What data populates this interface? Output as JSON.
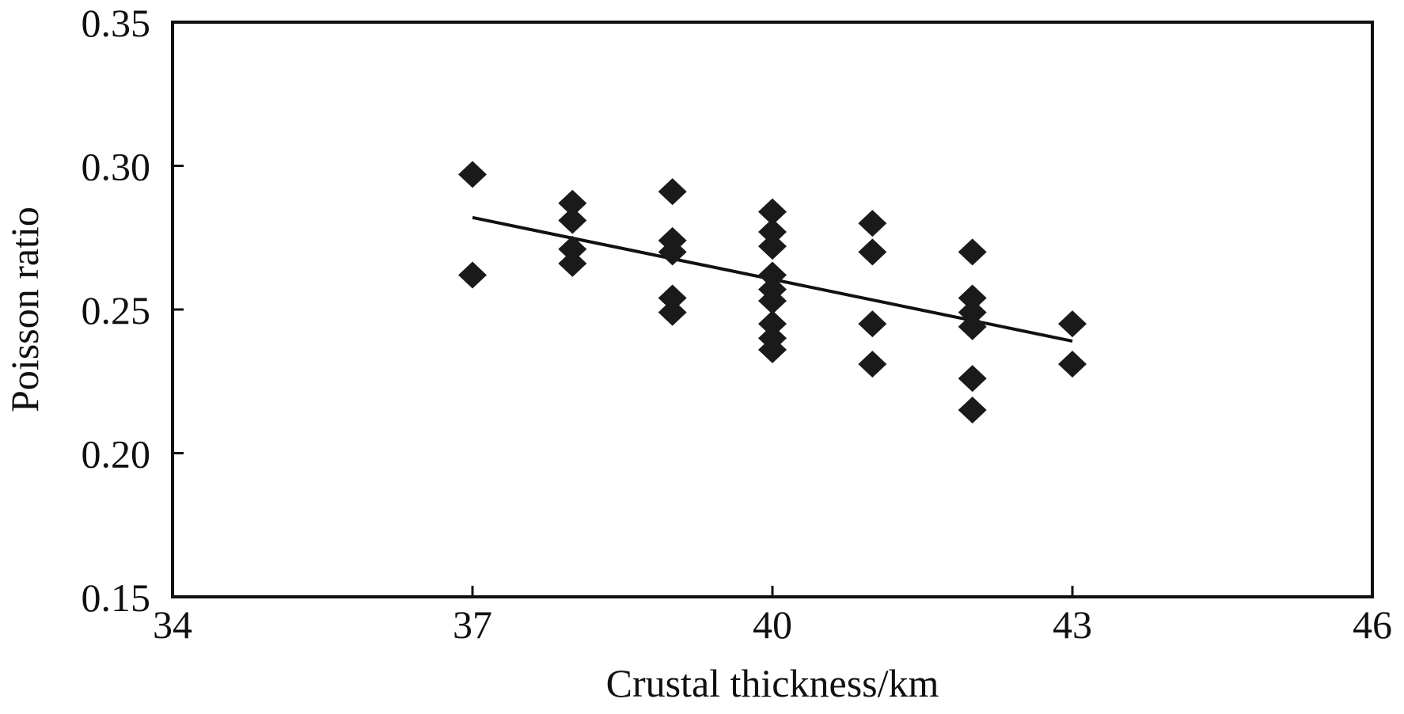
{
  "chart_data": {
    "type": "scatter",
    "xlabel": "Crustal thickness/km",
    "ylabel": "Poisson ratio",
    "xlim": [
      34,
      46
    ],
    "ylim": [
      0.15,
      0.35
    ],
    "xticks": [
      "34",
      "37",
      "40",
      "43",
      "46"
    ],
    "yticks": [
      "0.15",
      "0.20",
      "0.25",
      "0.30",
      "0.35"
    ],
    "grid": false,
    "marker": "diamond",
    "marker_color": "#1a1a1a",
    "series": [
      {
        "points": [
          {
            "x": 37,
            "y": 0.297
          },
          {
            "x": 37,
            "y": 0.262
          },
          {
            "x": 38,
            "y": 0.287
          },
          {
            "x": 38,
            "y": 0.281
          },
          {
            "x": 38,
            "y": 0.271
          },
          {
            "x": 38,
            "y": 0.266
          },
          {
            "x": 39,
            "y": 0.291
          },
          {
            "x": 39,
            "y": 0.274
          },
          {
            "x": 39,
            "y": 0.27
          },
          {
            "x": 39,
            "y": 0.254
          },
          {
            "x": 39,
            "y": 0.249
          },
          {
            "x": 40,
            "y": 0.284
          },
          {
            "x": 40,
            "y": 0.277
          },
          {
            "x": 40,
            "y": 0.272
          },
          {
            "x": 40,
            "y": 0.262
          },
          {
            "x": 40,
            "y": 0.257
          },
          {
            "x": 40,
            "y": 0.253
          },
          {
            "x": 40,
            "y": 0.245
          },
          {
            "x": 40,
            "y": 0.24
          },
          {
            "x": 40,
            "y": 0.236
          },
          {
            "x": 41,
            "y": 0.28
          },
          {
            "x": 41,
            "y": 0.27
          },
          {
            "x": 41,
            "y": 0.245
          },
          {
            "x": 41,
            "y": 0.231
          },
          {
            "x": 42,
            "y": 0.27
          },
          {
            "x": 42,
            "y": 0.254
          },
          {
            "x": 42,
            "y": 0.249
          },
          {
            "x": 42,
            "y": 0.244
          },
          {
            "x": 42,
            "y": 0.226
          },
          {
            "x": 42,
            "y": 0.215
          },
          {
            "x": 43,
            "y": 0.245
          },
          {
            "x": 43,
            "y": 0.231
          }
        ]
      }
    ],
    "fit_line": {
      "x": [
        37,
        43
      ],
      "y": [
        0.282,
        0.239
      ],
      "color": "#111111"
    }
  }
}
